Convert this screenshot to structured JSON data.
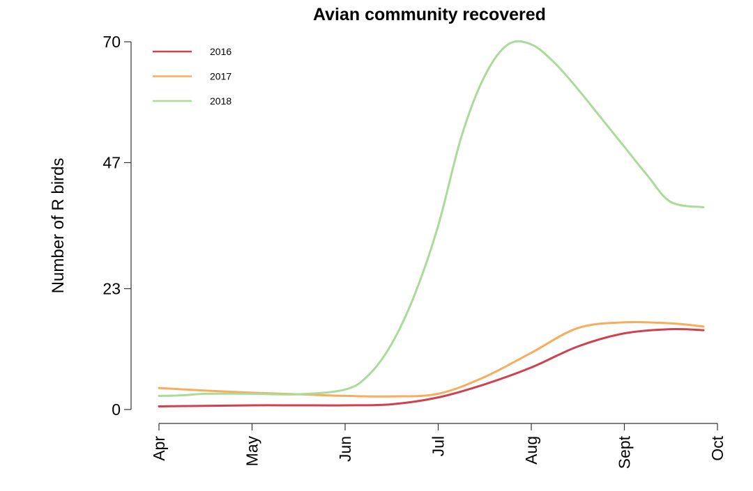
{
  "chart_data": {
    "type": "line",
    "title": "Avian community recovered",
    "xlabel": "",
    "ylabel": "Number of R birds",
    "x_tick_labels": [
      "Apr",
      "May",
      "Jun",
      "Jul",
      "Aug",
      "Sept",
      "Oct"
    ],
    "y_ticks": [
      0,
      23,
      47,
      70
    ],
    "y_tick_labels": [
      "0",
      "23",
      "47",
      "70"
    ],
    "ylim": [
      0,
      70
    ],
    "grid": false,
    "legend_position": "top-left",
    "series": [
      {
        "name": "2016",
        "color": "#d0404e",
        "x": [
          0,
          0.5,
          1,
          1.5,
          2,
          2.5,
          3,
          3.5,
          4,
          4.5,
          5,
          5.5,
          5.85
        ],
        "y": [
          0.6,
          0.7,
          0.8,
          0.8,
          0.8,
          1.0,
          2.3,
          4.8,
          8.0,
          12.0,
          14.5,
          15.3,
          15.1
        ]
      },
      {
        "name": "2017",
        "color": "#f8ac5c",
        "x": [
          0,
          0.5,
          1,
          1.5,
          2,
          2.5,
          3,
          3.5,
          4,
          4.5,
          5,
          5.5,
          5.85
        ],
        "y": [
          4.1,
          3.6,
          3.2,
          2.9,
          2.6,
          2.5,
          3.0,
          6.2,
          10.8,
          15.5,
          16.6,
          16.4,
          15.8
        ]
      },
      {
        "name": "2018",
        "color": "#a8dc98",
        "x": [
          0,
          0.25,
          0.5,
          1,
          1.5,
          2,
          2.25,
          2.5,
          2.75,
          3,
          3.25,
          3.5,
          3.75,
          4,
          4.25,
          4.5,
          4.75,
          5,
          5.25,
          5.5,
          5.85
        ],
        "y": [
          2.6,
          2.7,
          3.0,
          3.0,
          2.9,
          3.8,
          6.5,
          12.5,
          22.0,
          35.0,
          52.0,
          63.5,
          69.5,
          69.5,
          66.0,
          61.0,
          55.5,
          50.0,
          44.5,
          39.5,
          38.5
        ]
      }
    ]
  }
}
